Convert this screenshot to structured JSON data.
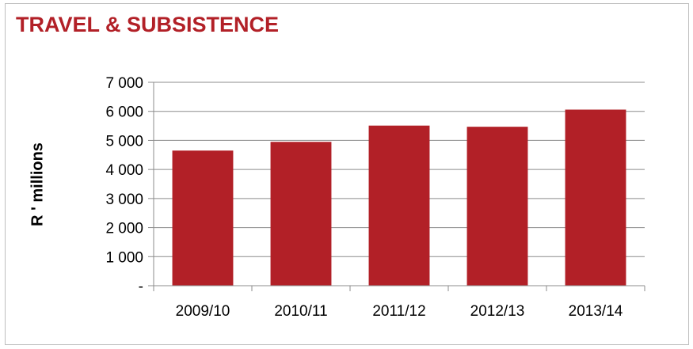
{
  "chart_data": {
    "type": "bar",
    "title": "TRAVEL & SUBSISTENCE",
    "xlabel": "",
    "ylabel": "R ' millions",
    "categories": [
      "2009/10",
      "2010/11",
      "2011/12",
      "2012/13",
      "2013/14"
    ],
    "values": [
      4650,
      4950,
      5510,
      5470,
      6060
    ],
    "ylim": [
      0,
      7000
    ],
    "yticks": [
      0,
      1000,
      2000,
      3000,
      4000,
      5000,
      6000,
      7000
    ],
    "ytick_labels": [
      "-",
      "1 000",
      "2 000",
      "3 000",
      "4 000",
      "5 000",
      "6 000",
      "7 000"
    ],
    "bar_color": "#b22027",
    "grid": true,
    "legend": "none"
  }
}
